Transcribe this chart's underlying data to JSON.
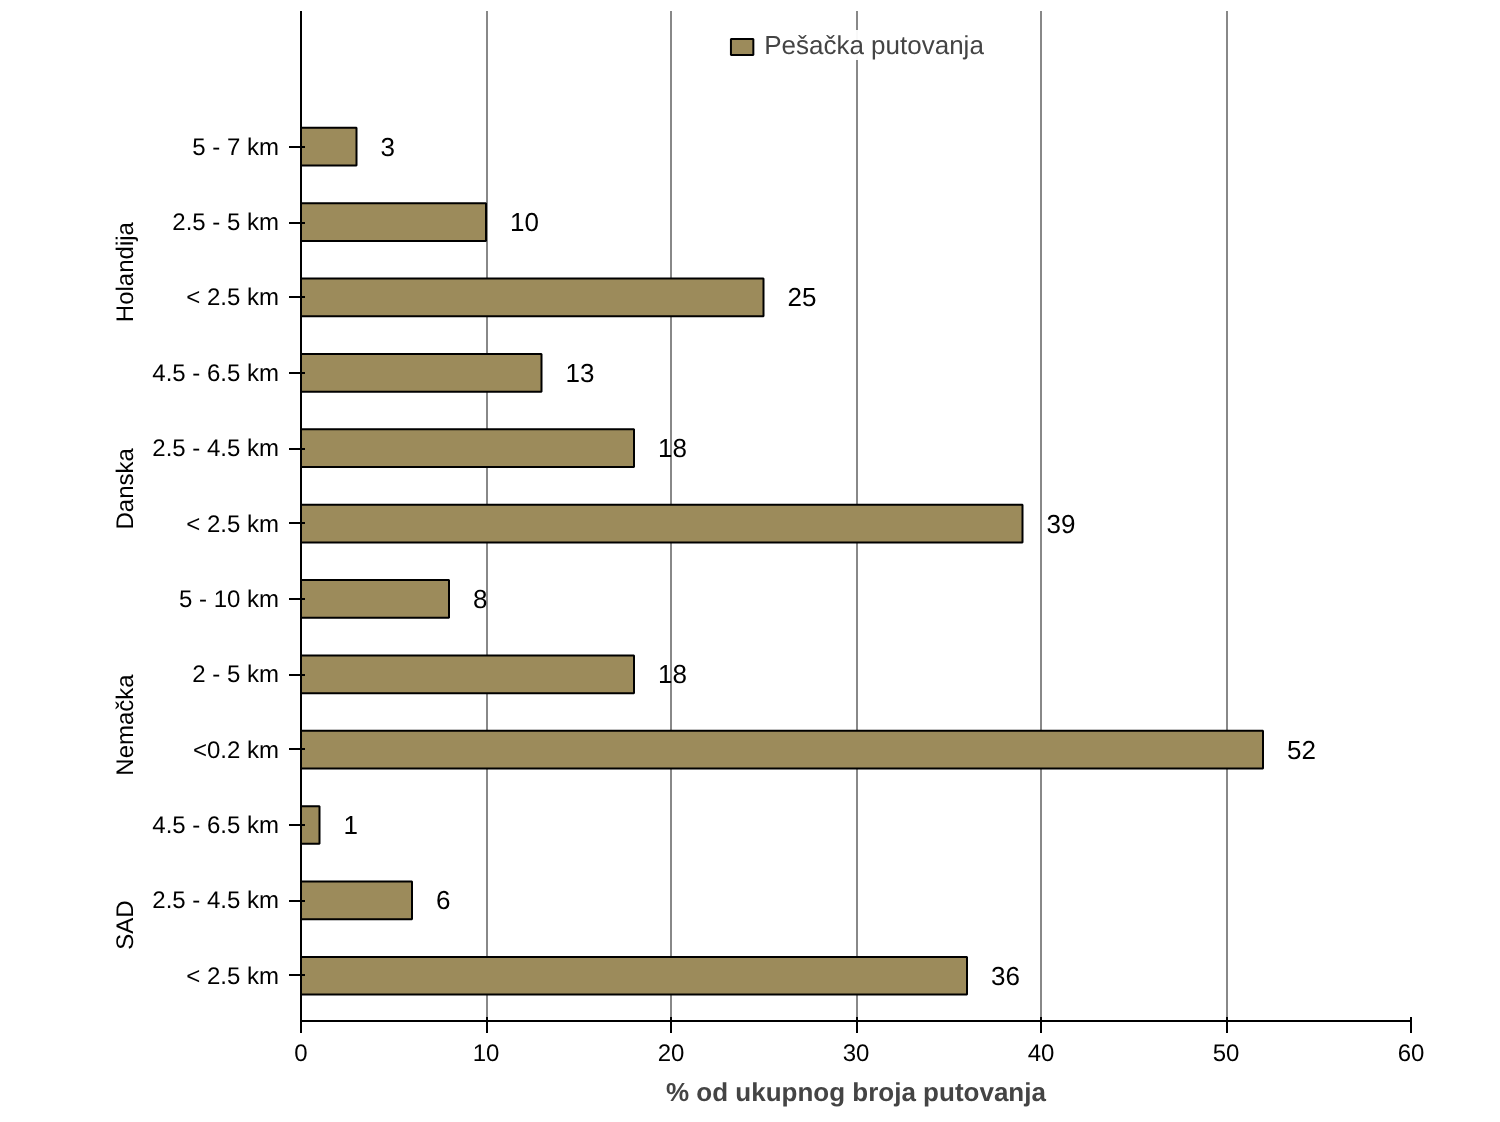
{
  "chart_data": {
    "type": "bar",
    "orientation": "horizontal",
    "categories": [
      "5 - 7 km",
      "2.5 - 5 km",
      "< 2.5 km",
      "4.5 - 6.5 km",
      "2.5 - 4.5 km",
      "< 2.5 km",
      "5 - 10 km",
      "2 - 5 km",
      "<0.2 km",
      "4.5 - 6.5 km",
      "2.5 - 4.5 km",
      "< 2.5 km"
    ],
    "series": [
      {
        "name": "Pešačka putovanja",
        "color": "#9c8b5b",
        "values": [
          3,
          10,
          25,
          13,
          18,
          39,
          8,
          18,
          52,
          1,
          6,
          36
        ]
      }
    ],
    "annotations": [
      "Holandija",
      "Danska",
      "Nemačka",
      "SAD"
    ],
    "xlabel": "% od ukupnog broja putovanja",
    "xlim": [
      0,
      60
    ],
    "xticks": [
      0,
      10,
      20,
      30,
      40,
      50,
      60
    ],
    "grid": "x",
    "legend": "top",
    "data_labels": true
  }
}
